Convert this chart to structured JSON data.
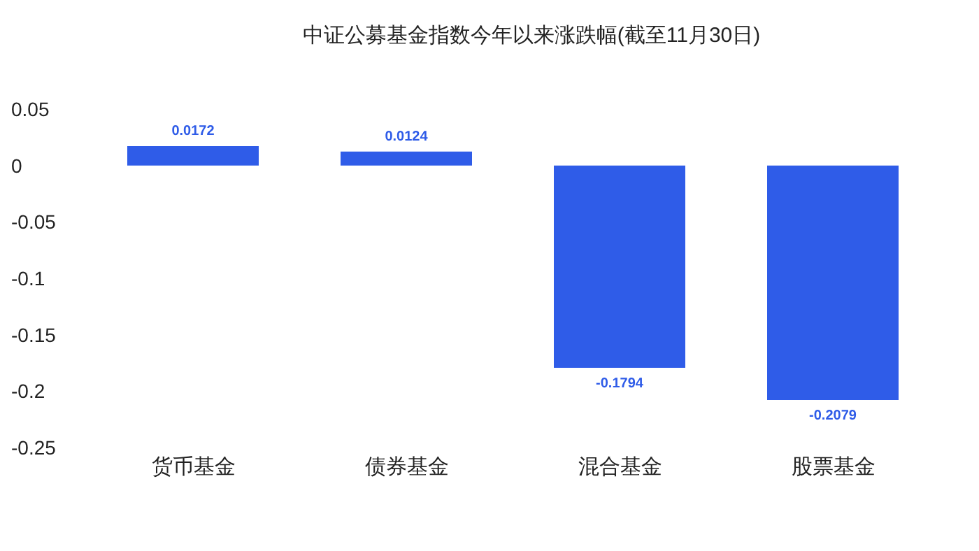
{
  "chart_data": {
    "type": "bar",
    "title": "中证公募基金指数今年以来涨跌幅(截至11月30日)",
    "categories": [
      "货币基金",
      "债券基金",
      "混合基金",
      "股票基金"
    ],
    "values": [
      0.0172,
      0.0124,
      -0.1794,
      -0.2079
    ],
    "color": "#2f5ce8",
    "ylim": [
      -0.25,
      0.05
    ],
    "yticks": [
      -0.25,
      -0.2,
      -0.15,
      -0.1,
      -0.05,
      0,
      0.05
    ],
    "grid": false,
    "legend": false,
    "data_labels": true
  }
}
